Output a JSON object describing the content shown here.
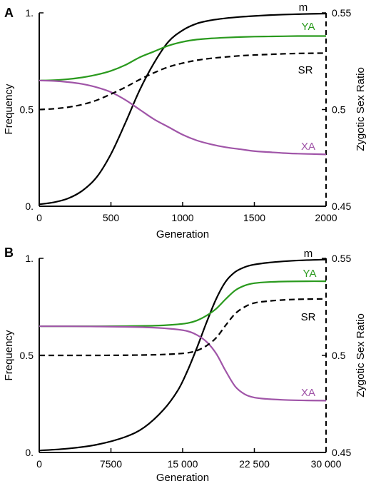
{
  "chart_data": [
    {
      "panel": "A",
      "type": "line",
      "xlabel": "Generation",
      "ylabel": "Frequency",
      "y2label": "Zygotic Sex Ratio",
      "xlim": [
        0,
        2000
      ],
      "ylim": [
        0,
        1
      ],
      "y2lim": [
        0.45,
        0.55
      ],
      "xticks": [
        "0",
        "500",
        "1000",
        "1500",
        "2000"
      ],
      "xtick_values": [
        0,
        500,
        1000,
        1500,
        2000
      ],
      "yticks": [
        "0.",
        "0.5",
        "1."
      ],
      "ytick_values": [
        0,
        0.5,
        1
      ],
      "y2ticks": [
        "0.45",
        "0.5",
        "0.55"
      ],
      "y2tick_values": [
        0.45,
        0.5,
        0.55
      ],
      "grid": false,
      "series": [
        {
          "name": "m",
          "axis": "left",
          "color": "#000000",
          "dash": false,
          "x": [
            0,
            100,
            200,
            300,
            400,
            500,
            600,
            700,
            800,
            900,
            1000,
            1100,
            1200,
            1300,
            1400,
            1500,
            1600,
            1700,
            1800,
            1900,
            2000
          ],
          "y": [
            0.01,
            0.02,
            0.04,
            0.08,
            0.15,
            0.27,
            0.43,
            0.6,
            0.74,
            0.85,
            0.91,
            0.945,
            0.962,
            0.972,
            0.979,
            0.984,
            0.988,
            0.991,
            0.993,
            0.995,
            0.996
          ]
        },
        {
          "name": "YA",
          "axis": "left",
          "color": "#2a9a1e",
          "dash": false,
          "x": [
            0,
            100,
            200,
            300,
            400,
            500,
            600,
            700,
            800,
            900,
            1000,
            1100,
            1200,
            1300,
            1400,
            1500,
            1600,
            1700,
            1800,
            1900,
            2000
          ],
          "y": [
            0.65,
            0.652,
            0.657,
            0.666,
            0.68,
            0.7,
            0.73,
            0.77,
            0.8,
            0.83,
            0.85,
            0.862,
            0.868,
            0.872,
            0.875,
            0.877,
            0.878,
            0.879,
            0.88,
            0.88,
            0.88
          ]
        },
        {
          "name": "XA",
          "axis": "left",
          "color": "#a055a8",
          "dash": false,
          "x": [
            0,
            100,
            200,
            300,
            400,
            500,
            600,
            700,
            800,
            900,
            1000,
            1100,
            1200,
            1300,
            1400,
            1500,
            1600,
            1700,
            1800,
            1900,
            2000
          ],
          "y": [
            0.65,
            0.648,
            0.642,
            0.632,
            0.615,
            0.59,
            0.55,
            0.5,
            0.45,
            0.41,
            0.37,
            0.34,
            0.32,
            0.305,
            0.295,
            0.285,
            0.28,
            0.275,
            0.272,
            0.27,
            0.268
          ]
        },
        {
          "name": "SR",
          "axis": "right",
          "color": "#000000",
          "dash": true,
          "x": [
            0,
            100,
            200,
            300,
            400,
            500,
            600,
            700,
            800,
            900,
            1000,
            1100,
            1200,
            1300,
            1400,
            1500,
            1600,
            1700,
            1800,
            1900,
            2000
          ],
          "y": [
            0.5,
            0.5004,
            0.5012,
            0.5026,
            0.5048,
            0.508,
            0.5115,
            0.5155,
            0.519,
            0.522,
            0.524,
            0.5255,
            0.5265,
            0.5272,
            0.5278,
            0.5282,
            0.5285,
            0.5288,
            0.529,
            0.5291,
            0.5292
          ]
        }
      ]
    },
    {
      "panel": "B",
      "type": "line",
      "xlabel": "Generation",
      "ylabel": "Frequency",
      "y2label": "Zygotic Sex Ratio",
      "xlim": [
        0,
        30000
      ],
      "ylim": [
        0,
        1
      ],
      "y2lim": [
        0.45,
        0.55
      ],
      "xticks": [
        "0",
        "7500",
        "15 000",
        "22 500",
        "30 000"
      ],
      "xtick_values": [
        0,
        7500,
        15000,
        22500,
        30000
      ],
      "yticks": [
        "0.",
        "0.5",
        "1."
      ],
      "ytick_values": [
        0,
        0.5,
        1
      ],
      "y2ticks": [
        "0.45",
        "0.5",
        "0.55"
      ],
      "y2tick_values": [
        0.45,
        0.5,
        0.55
      ],
      "grid": false,
      "series": [
        {
          "name": "m",
          "axis": "left",
          "color": "#000000",
          "dash": false,
          "x": [
            0,
            3000,
            6000,
            9000,
            11000,
            13000,
            14500,
            15500,
            16500,
            17500,
            18500,
            19500,
            20500,
            21500,
            22500,
            24000,
            26000,
            28000,
            30000
          ],
          "y": [
            0.01,
            0.02,
            0.04,
            0.08,
            0.13,
            0.22,
            0.32,
            0.42,
            0.54,
            0.67,
            0.79,
            0.88,
            0.93,
            0.955,
            0.968,
            0.978,
            0.986,
            0.991,
            0.994
          ]
        },
        {
          "name": "YA",
          "axis": "left",
          "color": "#2a9a1e",
          "dash": false,
          "x": [
            0,
            3000,
            6000,
            9000,
            12000,
            14000,
            15500,
            16500,
            17500,
            18500,
            19500,
            20500,
            21500,
            22500,
            24000,
            26000,
            28000,
            30000
          ],
          "y": [
            0.65,
            0.65,
            0.65,
            0.651,
            0.653,
            0.658,
            0.666,
            0.68,
            0.705,
            0.74,
            0.79,
            0.835,
            0.86,
            0.872,
            0.878,
            0.881,
            0.882,
            0.882
          ]
        },
        {
          "name": "XA",
          "axis": "left",
          "color": "#a055a8",
          "dash": false,
          "x": [
            0,
            3000,
            6000,
            9000,
            12000,
            14000,
            15500,
            16500,
            17500,
            18500,
            19500,
            20500,
            21500,
            22500,
            24000,
            26000,
            28000,
            30000
          ],
          "y": [
            0.65,
            0.65,
            0.649,
            0.647,
            0.643,
            0.636,
            0.625,
            0.605,
            0.57,
            0.51,
            0.42,
            0.34,
            0.3,
            0.283,
            0.275,
            0.27,
            0.268,
            0.267
          ]
        },
        {
          "name": "SR",
          "axis": "right",
          "color": "#000000",
          "dash": true,
          "x": [
            0,
            3000,
            6000,
            9000,
            12000,
            14000,
            15500,
            16500,
            17500,
            18500,
            19500,
            20500,
            21500,
            22500,
            24000,
            26000,
            28000,
            30000
          ],
          "y": [
            0.5,
            0.5,
            0.5,
            0.5001,
            0.5003,
            0.5007,
            0.5013,
            0.5025,
            0.505,
            0.509,
            0.5155,
            0.5215,
            0.525,
            0.527,
            0.528,
            0.5287,
            0.529,
            0.5291
          ]
        }
      ]
    }
  ]
}
